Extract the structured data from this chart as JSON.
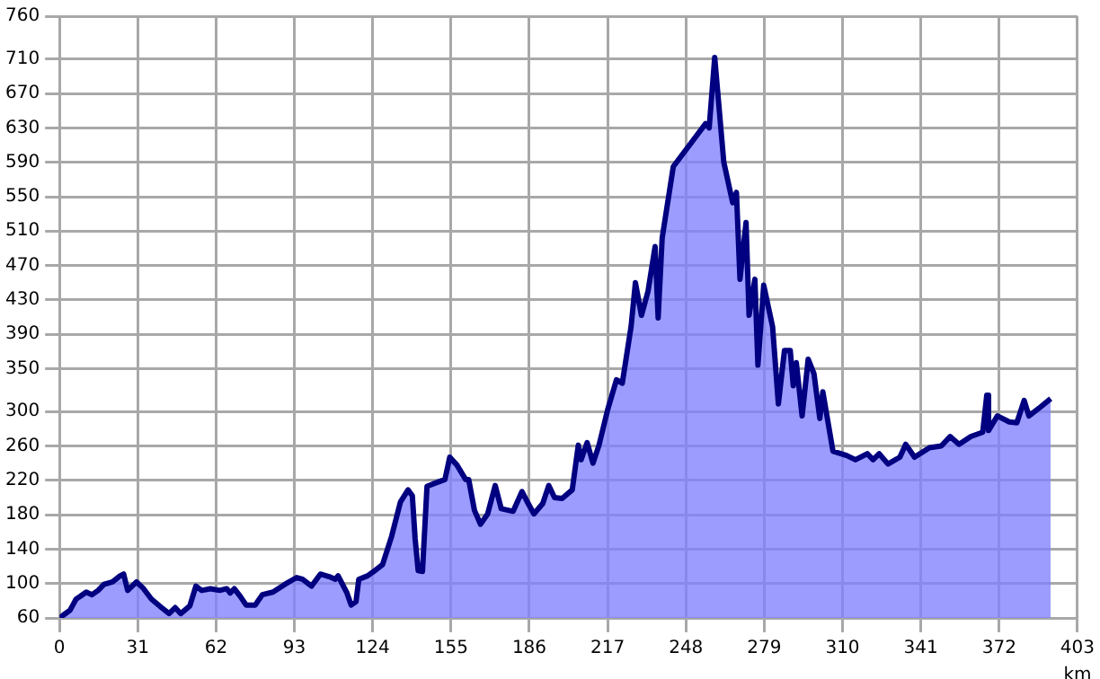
{
  "chart_data": {
    "type": "area",
    "xlabel": "km",
    "color": "#000080",
    "grid": true,
    "marker": "none",
    "xlim": [
      0,
      403
    ],
    "xticks": [
      0,
      31,
      62,
      93,
      124,
      155,
      186,
      217,
      248,
      279,
      310,
      341,
      372,
      403
    ],
    "ylim": [
      60,
      760
    ],
    "yticks": [
      60,
      100,
      140,
      180,
      220,
      260,
      300,
      350,
      390,
      430,
      470,
      510,
      550,
      590,
      630,
      670,
      710,
      760
    ],
    "x": [
      0,
      2.3,
      4.2,
      6.6,
      8.2,
      10.6,
      12.9,
      15.3,
      17.6,
      21,
      24,
      25.4,
      27,
      30.5,
      33.3,
      36.4,
      40.4,
      43.4,
      45.8,
      48,
      51.6,
      54,
      56.3,
      59.8,
      63.4,
      66.2,
      67.6,
      69.2,
      71.6,
      73.9,
      77.5,
      80.3,
      84.5,
      89.2,
      93.9,
      96.2,
      99.8,
      103.3,
      106.8,
      109.2,
      110.3,
      113.8,
      115.5,
      117.4,
      118.5,
      122,
      124.4,
      127.9,
      131.5,
      135,
      138,
      139.7,
      140.8,
      142,
      143.7,
      145.5,
      148,
      152.6,
      154.5,
      157.3,
      160.8,
      162,
      164.3,
      166.7,
      169.5,
      172.5,
      174.9,
      179.6,
      183.1,
      185.4,
      187.8,
      191.3,
      193.7,
      196,
      199,
      203,
      205.4,
      206.5,
      208.9,
      211.2,
      213.6,
      217,
      220.5,
      222.8,
      226.3,
      228,
      230.4,
      233,
      235.8,
      237,
      238.6,
      243,
      255.8,
      257.2,
      259.4,
      263,
      266.5,
      268,
      269.4,
      271.8,
      273,
      275.3,
      276.5,
      278.8,
      282.3,
      284.6,
      287,
      289.3,
      290.5,
      291.7,
      294,
      296.4,
      298.7,
      301,
      302.2,
      306.2,
      311.6,
      315.1,
      319.8,
      322.1,
      324.5,
      328,
      332.7,
      335,
      338.5,
      344.4,
      349.1,
      352.6,
      356.1,
      360.8,
      365.5,
      367.1,
      367.8,
      371.3,
      376,
      379,
      381.9,
      383.8,
      387.8,
      392.4
    ],
    "values": [
      60,
      65,
      69,
      82,
      85,
      90,
      87,
      92,
      99,
      102,
      109,
      111,
      92,
      102,
      94,
      82,
      72,
      65,
      72,
      65,
      74,
      97,
      92,
      94,
      92,
      94,
      89,
      94,
      85,
      75,
      75,
      87,
      90,
      99,
      107,
      105,
      97,
      111,
      108,
      105,
      109,
      89,
      75,
      79,
      105,
      109,
      114,
      122,
      155,
      195,
      209,
      202,
      152,
      115,
      114,
      213,
      216,
      221,
      247,
      238,
      221,
      221,
      185,
      169,
      181,
      214,
      187,
      184,
      207,
      194,
      181,
      193,
      214,
      200,
      199,
      209,
      261,
      244,
      264,
      240,
      261,
      302,
      337,
      333,
      399,
      450,
      412,
      440,
      492,
      409,
      502,
      585,
      635,
      630,
      712,
      590,
      543,
      555,
      454,
      520,
      412,
      454,
      354,
      447,
      399,
      309,
      371,
      371,
      330,
      357,
      295,
      361,
      344,
      292,
      323,
      254,
      249,
      244,
      251,
      244,
      251,
      239,
      247,
      262,
      247,
      258,
      260,
      271,
      262,
      271,
      276,
      319,
      278,
      295,
      288,
      287,
      313,
      295,
      304,
      315
    ]
  }
}
